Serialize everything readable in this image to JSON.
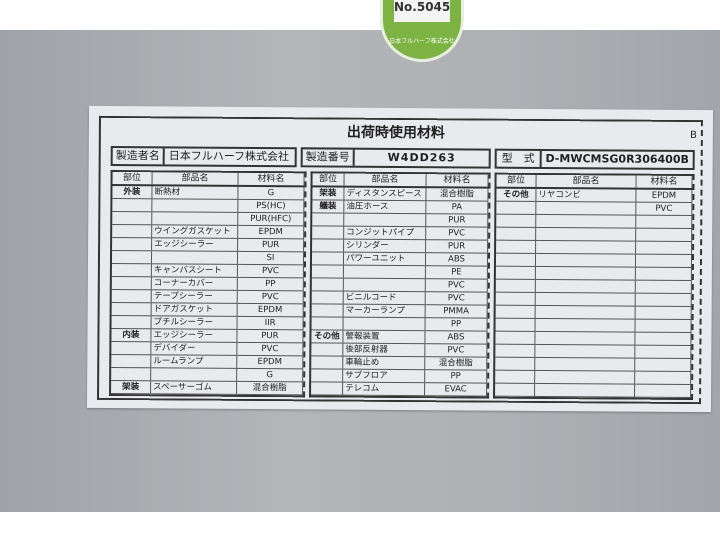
{
  "sticker": {
    "number": "No.5045",
    "company": "日本フルハーフ株式会社",
    "color": "#7cb342"
  },
  "plate": {
    "title": "出荷時使用材料",
    "revision": "B",
    "maker_label": "製造者名",
    "maker": "日本フルハーフ株式会社",
    "serial_label": "製造番号",
    "serial": "W4DD263",
    "model_label": "型　式",
    "model": "D-MWCMSG0R306400B",
    "headers": [
      "部位",
      "部品名",
      "材料名"
    ],
    "left_rows": [
      [
        "外装",
        "断熱材",
        "G"
      ],
      [
        "",
        "",
        "PS(HC)"
      ],
      [
        "",
        "",
        "PUR(HFC)"
      ],
      [
        "",
        "ウイングガスケット",
        "EPDM"
      ],
      [
        "",
        "エッジシーラー",
        "PUR"
      ],
      [
        "",
        "",
        "SI"
      ],
      [
        "",
        "キャンバスシート",
        "PVC"
      ],
      [
        "",
        "コーナーカバー",
        "PP"
      ],
      [
        "",
        "テープシーラー",
        "PVC"
      ],
      [
        "",
        "ドアガスケット",
        "EPDM"
      ],
      [
        "",
        "ブチルシーラー",
        "IIR"
      ],
      [
        "内装",
        "エッジシーラー",
        "PUR"
      ],
      [
        "",
        "デバイダー",
        "PVC"
      ],
      [
        "",
        "ルームランプ",
        "EPDM"
      ],
      [
        "",
        "",
        "G"
      ],
      [
        "架装",
        "スペーサーゴム",
        "混合樹脂"
      ]
    ],
    "middle_rows": [
      [
        "架装",
        "ディスタンスピース",
        "混合樹脂"
      ],
      [
        "艤装",
        "油圧ホース",
        "PA"
      ],
      [
        "",
        "",
        "PUR"
      ],
      [
        "",
        "コンジットパイプ",
        "PVC"
      ],
      [
        "",
        "シリンダー",
        "PUR"
      ],
      [
        "",
        "パワーユニット",
        "ABS"
      ],
      [
        "",
        "",
        "PE"
      ],
      [
        "",
        "",
        "PVC"
      ],
      [
        "",
        "ビニルコード",
        "PVC"
      ],
      [
        "",
        "マーカーランプ",
        "PMMA"
      ],
      [
        "",
        "",
        "PP"
      ],
      [
        "その他",
        "警報装置",
        "ABS"
      ],
      [
        "",
        "後部反射器",
        "PVC"
      ],
      [
        "",
        "車輪止め",
        "混合樹脂"
      ],
      [
        "",
        "サブフロア",
        "PP"
      ],
      [
        "",
        "テレコム",
        "EVAC"
      ]
    ],
    "right_rows": [
      [
        "その他",
        "リヤコンビ",
        "EPDM"
      ],
      [
        "",
        "",
        "PVC"
      ],
      [
        "",
        "",
        ""
      ],
      [
        "",
        "",
        ""
      ],
      [
        "",
        "",
        ""
      ],
      [
        "",
        "",
        ""
      ],
      [
        "",
        "",
        ""
      ],
      [
        "",
        "",
        ""
      ],
      [
        "",
        "",
        ""
      ],
      [
        "",
        "",
        ""
      ],
      [
        "",
        "",
        ""
      ],
      [
        "",
        "",
        ""
      ],
      [
        "",
        "",
        ""
      ],
      [
        "",
        "",
        ""
      ],
      [
        "",
        "",
        ""
      ],
      [
        "",
        "",
        ""
      ]
    ]
  }
}
